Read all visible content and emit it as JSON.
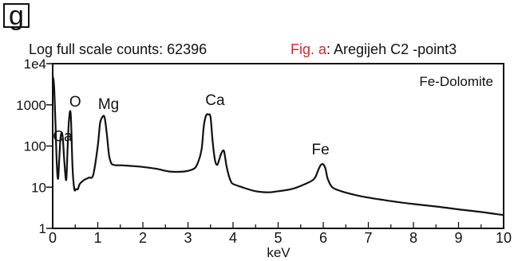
{
  "panel_letter": "g",
  "header": {
    "counts_text": "Log full scale counts: 62396",
    "fig_label": "Fig. a",
    "sample_text": ": Aregijeh C2 -point3",
    "fig_label_color": "#d0262c"
  },
  "chart_data": {
    "type": "line",
    "title": "",
    "xlabel": "keV",
    "ylabel": "",
    "yscale": "log",
    "xlim": [
      0,
      10
    ],
    "ylim": [
      1,
      10000
    ],
    "x_ticks": [
      0,
      1,
      2,
      3,
      4,
      5,
      6,
      7,
      8,
      9,
      10
    ],
    "x_tick_labels": [
      "0",
      "1",
      "2",
      "3",
      "4",
      "5",
      "6",
      "7",
      "8",
      "9",
      "10"
    ],
    "y_ticks": [
      1,
      10,
      100,
      1000,
      10000
    ],
    "y_tick_labels": [
      "1",
      "10",
      "100",
      "1000",
      "1e4"
    ],
    "grid": false,
    "annotation": "Fe-Dolomite",
    "peak_labels": [
      {
        "text": "Ca",
        "x": 0.22,
        "y": 130
      },
      {
        "text": "O",
        "x": 0.5,
        "y": 900
      },
      {
        "text": "Mg",
        "x": 1.24,
        "y": 800
      },
      {
        "text": "Ca",
        "x": 3.6,
        "y": 1000
      },
      {
        "text": "Fe",
        "x": 5.94,
        "y": 63
      }
    ],
    "series": [
      {
        "x": [
          0,
          0.03,
          0.06,
          0.09,
          0.12,
          0.15,
          0.18,
          0.22,
          0.26,
          0.3,
          0.33,
          0.36,
          0.4,
          0.44,
          0.48,
          0.52,
          0.56,
          0.6,
          0.7,
          0.8,
          0.9,
          1.0,
          1.05,
          1.1,
          1.15,
          1.2,
          1.25,
          1.3,
          1.35,
          1.4,
          1.5,
          1.7,
          2.0,
          2.3,
          2.6,
          2.9,
          3.1,
          3.2,
          3.3,
          3.35,
          3.4,
          3.45,
          3.5,
          3.55,
          3.6,
          3.65,
          3.7,
          3.75,
          3.8,
          3.85,
          3.9,
          3.95,
          4.0,
          4.2,
          4.5,
          4.8,
          5.0,
          5.3,
          5.6,
          5.8,
          5.9,
          5.95,
          6.0,
          6.05,
          6.1,
          6.2,
          6.4,
          6.7,
          7.0,
          7.5,
          8.0,
          8.5,
          9.0,
          9.5,
          10.0
        ],
        "y": [
          5000,
          3000,
          400,
          40,
          16,
          60,
          180,
          175,
          40,
          15,
          80,
          400,
          600,
          30,
          9,
          9,
          9,
          12,
          15,
          17,
          20,
          100,
          350,
          500,
          500,
          200,
          60,
          38,
          35,
          34,
          34,
          33,
          31,
          28,
          24,
          24,
          27,
          35,
          80,
          300,
          550,
          580,
          500,
          120,
          45,
          35,
          50,
          70,
          75,
          35,
          20,
          14,
          12,
          10,
          8,
          7.5,
          8,
          9,
          12,
          16,
          28,
          35,
          36,
          28,
          16,
          10,
          8,
          6.5,
          5.6,
          4.6,
          3.9,
          3.4,
          2.9,
          2.5,
          2.1
        ]
      }
    ]
  }
}
